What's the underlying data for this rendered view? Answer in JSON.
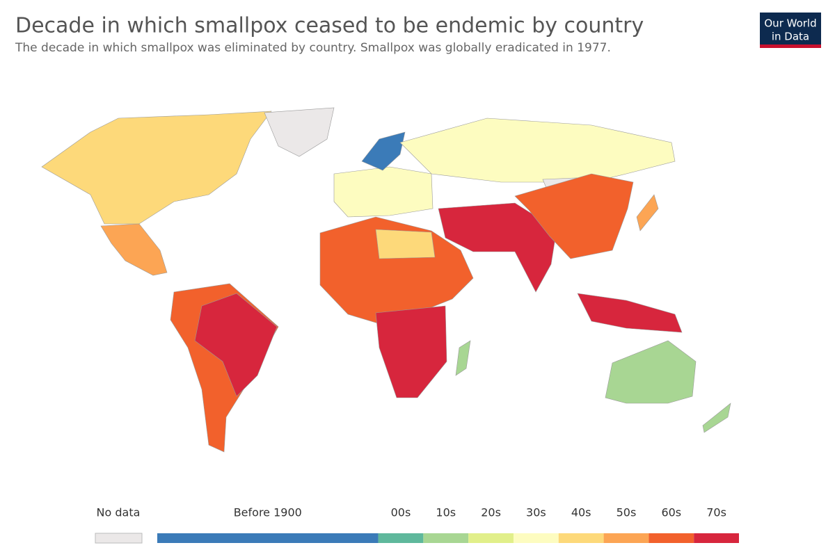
{
  "header": {
    "title": "Decade in which smallpox ceased to be endemic by country",
    "subtitle": "The decade in which smallpox was eliminated by country. Smallpox was globally eradicated in 1977."
  },
  "logo": {
    "lines": [
      "Our World",
      "in Data"
    ],
    "background": "#0d2a4f",
    "accent": "#c8102e"
  },
  "legend": {
    "no_data": {
      "label": "No data",
      "color": "#ebe8e8"
    },
    "bins": [
      {
        "label": "Before 1900",
        "color": "#3b7bb8"
      },
      {
        "label": "00s",
        "color": "#5fb89c"
      },
      {
        "label": "10s",
        "color": "#a8d693"
      },
      {
        "label": "20s",
        "color": "#e1ef8a"
      },
      {
        "label": "30s",
        "color": "#fdfcc0"
      },
      {
        "label": "40s",
        "color": "#fdd97a"
      },
      {
        "label": "50s",
        "color": "#fca554"
      },
      {
        "label": "60s",
        "color": "#f2612c"
      },
      {
        "label": "70s",
        "color": "#d7263d"
      }
    ]
  }
}
